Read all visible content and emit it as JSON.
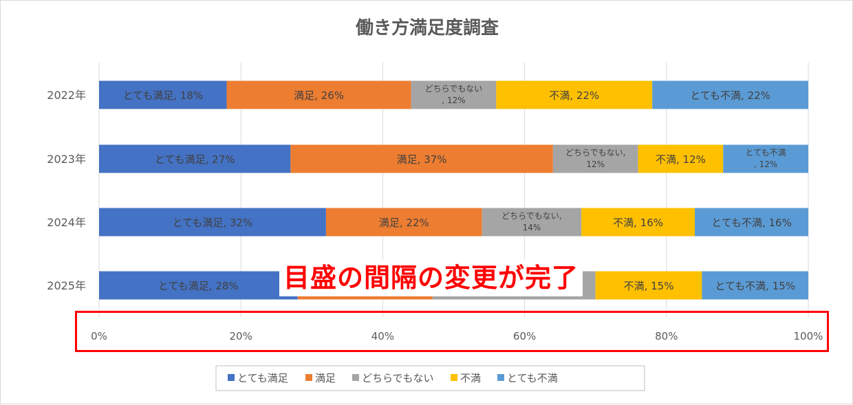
{
  "colors": {
    "very_satisfied": "#4472c4",
    "satisfied": "#ed7d31",
    "neutral": "#a5a5a5",
    "dissatisfied": "#ffc000",
    "very_dissatisfied": "#5b9bd5",
    "annotation": "#ff0000",
    "gridline": "#d9d9d9",
    "text": "#595959"
  },
  "annotation": {
    "overlay_text": "目盛の間隔の変更が完了",
    "highlighted_region": "x-axis tick labels"
  },
  "chart_data": {
    "type": "bar",
    "orientation": "horizontal",
    "stacked": "percent",
    "title": "働き方満足度調査",
    "xlabel": "",
    "ylabel": "",
    "categories": [
      "2022年",
      "2023年",
      "2024年",
      "2025年"
    ],
    "xlim": [
      0,
      100
    ],
    "x_ticks": [
      "0%",
      "20%",
      "40%",
      "60%",
      "80%",
      "100%"
    ],
    "grid": true,
    "legend_position": "bottom",
    "series": [
      {
        "name": "とても満足",
        "color_key": "very_satisfied",
        "values": [
          18,
          27,
          32,
          28
        ],
        "labels": [
          [
            "とても満足, 18%"
          ],
          [
            "とても満足, 27%"
          ],
          [
            "とても満足, 32%"
          ],
          [
            "とても満足, 28%"
          ]
        ]
      },
      {
        "name": "満足",
        "color_key": "satisfied",
        "values": [
          26,
          37,
          22,
          19
        ],
        "labels": [
          [
            "満足, 26%"
          ],
          [
            "満足, 37%"
          ],
          [
            "満足, 22%"
          ],
          []
        ]
      },
      {
        "name": "どちらでもない",
        "color_key": "neutral",
        "values": [
          12,
          12,
          14,
          23
        ],
        "labels": [
          [
            "どちらでもない",
            ", 12%"
          ],
          [
            "どちらでもない,",
            "12%"
          ],
          [
            "どちらでもない,",
            "14%"
          ],
          []
        ]
      },
      {
        "name": "不満",
        "color_key": "dissatisfied",
        "values": [
          22,
          12,
          16,
          15
        ],
        "labels": [
          [
            "不満, 22%"
          ],
          [
            "不満, 12%"
          ],
          [
            "不満, 16%"
          ],
          [
            "不満, 15%"
          ]
        ]
      },
      {
        "name": "とても不満",
        "color_key": "very_dissatisfied",
        "values": [
          22,
          12,
          16,
          15
        ],
        "labels": [
          [
            "とても不満, 22%"
          ],
          [
            "とても不満",
            ", 12%"
          ],
          [
            "とても不満, 16%"
          ],
          [
            "とても不満, 15%"
          ]
        ]
      }
    ]
  }
}
